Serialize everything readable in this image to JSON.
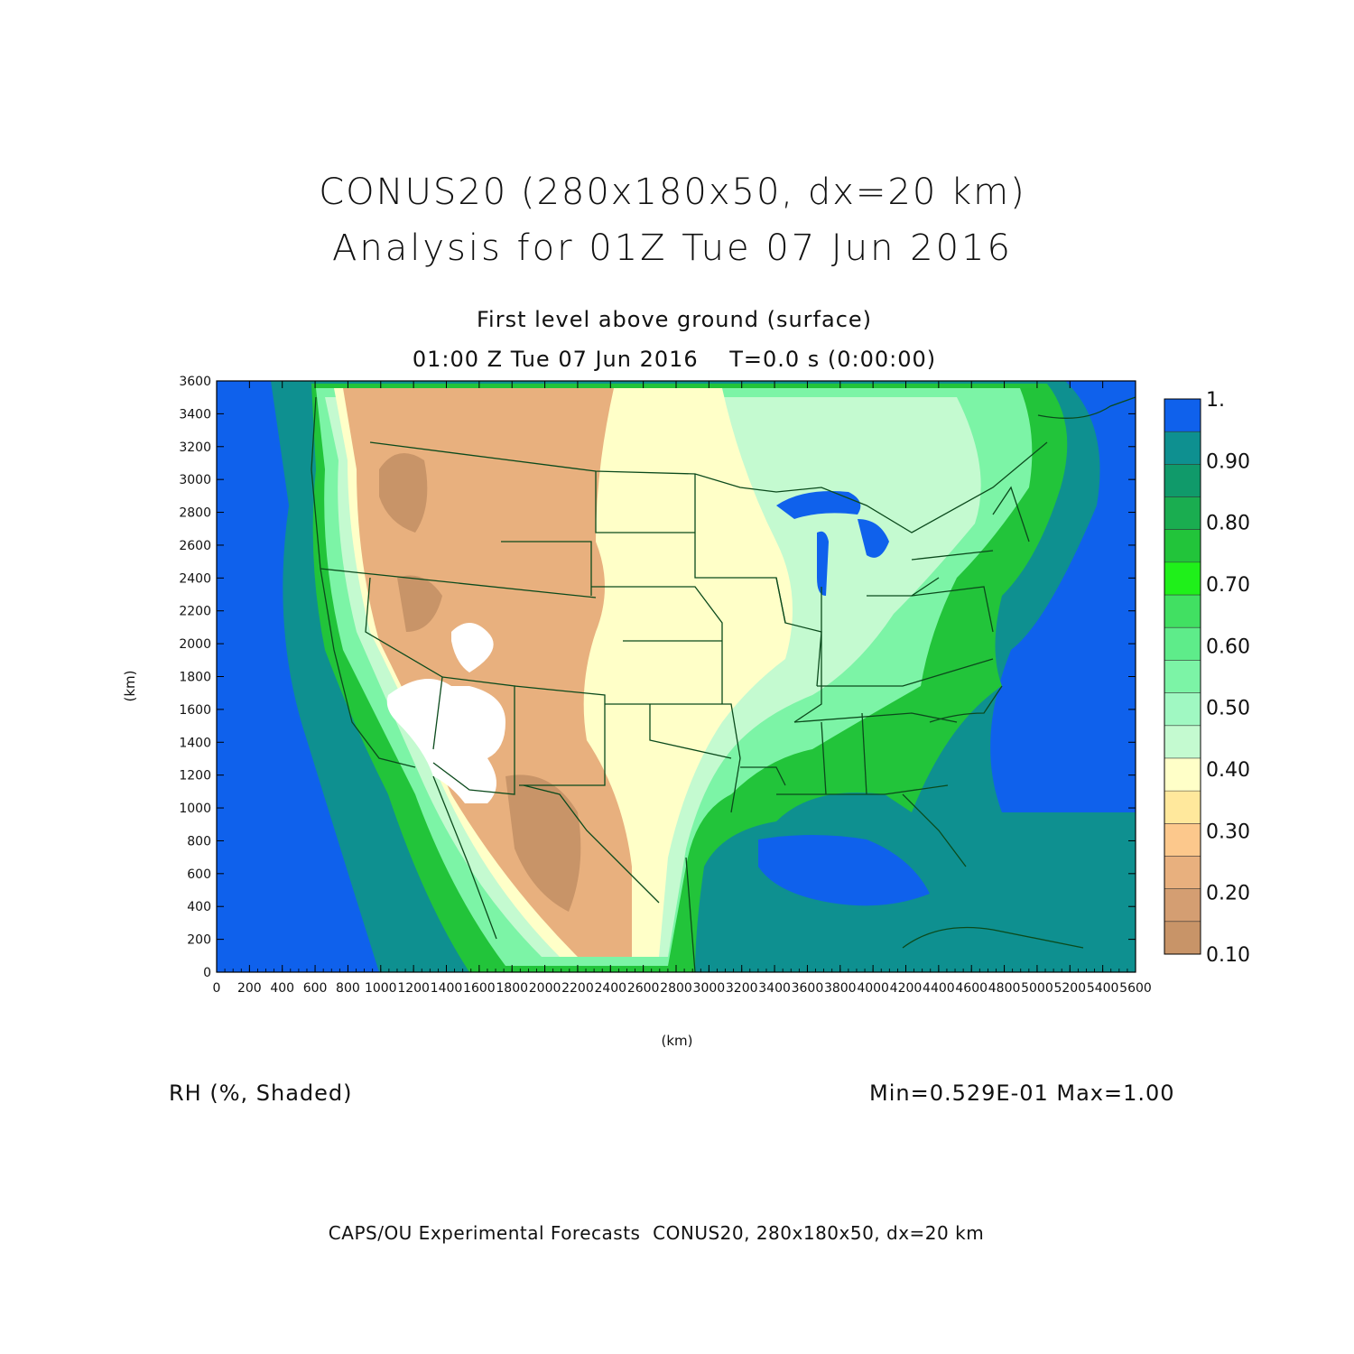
{
  "header": {
    "title_line1": "CONUS20 (280x180x50, dx=20 km)",
    "title_line2": "Analysis for 01Z Tue 07 Jun 2016",
    "subtitle_line1": "First level above ground (surface)",
    "subtitle_line2": "01:00 Z Tue 07 Jun 2016    T=0.0 s (0:00:00)"
  },
  "axes": {
    "x_label": "(km)",
    "y_label": "(km)",
    "x_range": [
      0,
      5600
    ],
    "y_range": [
      0,
      3600
    ],
    "x_ticks": [
      "0",
      "200",
      "400",
      "600",
      "800",
      "1000",
      "1200",
      "1400",
      "1600",
      "1800",
      "2000",
      "2200",
      "2400",
      "2600",
      "2800",
      "3000",
      "3200",
      "3400",
      "3600",
      "3800",
      "4000",
      "4200",
      "4400",
      "4600",
      "4800",
      "5000",
      "5200",
      "5400",
      "5600"
    ],
    "y_ticks": [
      "0",
      "200",
      "400",
      "600",
      "800",
      "1000",
      "1200",
      "1400",
      "1600",
      "1800",
      "2000",
      "2200",
      "2400",
      "2600",
      "2800",
      "3000",
      "3200",
      "3400",
      "3600"
    ]
  },
  "colorbar": {
    "labels": [
      "1.",
      "0.90",
      "0.80",
      "0.70",
      "0.60",
      "0.50",
      "0.40",
      "0.30",
      "0.20",
      "0.10"
    ],
    "colors": [
      "#0f61ec",
      "#0e9090",
      "#109a6a",
      "#1aad50",
      "#22c43a",
      "#1ff01a",
      "#41e062",
      "#5eec8a",
      "#7cf4a6",
      "#a0f8c2",
      "#c4fad0",
      "#ffffc8",
      "#ffe89c",
      "#fcc88c",
      "#e8b07e",
      "#d49e72",
      "#c89468"
    ],
    "range": [
      0.1,
      1.0
    ]
  },
  "field": {
    "variable_label": "RH (%, Shaded)",
    "min_max": "Min=0.529E-01 Max=1.00"
  },
  "footer": "CAPS/OU Experimental Forecasts  CONUS20, 280x180x50, dx=20 km"
}
